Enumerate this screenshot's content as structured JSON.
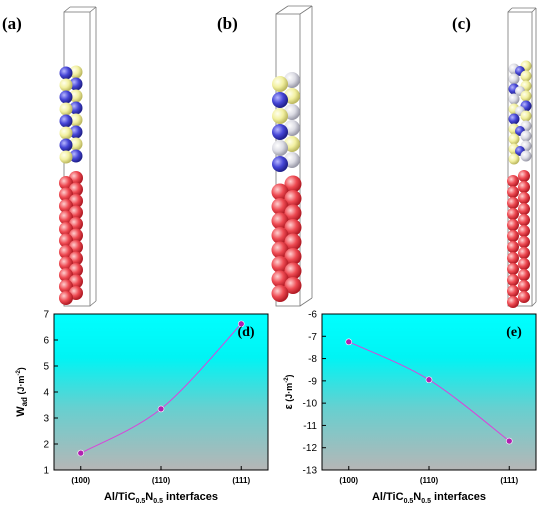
{
  "panels": {
    "a": "(a)",
    "b": "(b)",
    "c": "(c)"
  },
  "colors": {
    "al_atom": "#e8444c",
    "ti_atom": "#4a4ad8",
    "c_atom": "#f4f2a0",
    "n_atom": "#dcdce8",
    "curve": "#d943d9",
    "point": "#b020b0",
    "bg_top": "#00ffff",
    "bg_bottom": "#b8b8b8"
  },
  "chart_data": [
    {
      "type": "line",
      "panel_label": "(d)",
      "categories": [
        "(100)",
        "(110)",
        "(111)"
      ],
      "values": [
        1.65,
        3.35,
        6.62
      ],
      "ylabel": "W_ad (J·m⁻²)",
      "ylabel_main": "W",
      "ylabel_sub": "ad",
      "ylabel_unit": " (J·m",
      "ylabel_exp": "-2",
      "ylabel_close": ")",
      "xlabel_parts": [
        "Al/TiC",
        "0.5",
        "N",
        "0.5",
        " interfaces"
      ],
      "ylim": [
        1,
        7
      ],
      "yticks": [
        1,
        2,
        3,
        4,
        5,
        6,
        7
      ],
      "grid": false
    },
    {
      "type": "line",
      "panel_label": "(e)",
      "categories": [
        "(100)",
        "(110)",
        "(111)"
      ],
      "values": [
        -7.25,
        -8.95,
        -11.7
      ],
      "ylabel": "ε (J·m⁻²)",
      "ylabel_main": "ε",
      "ylabel_sub": "",
      "ylabel_unit": " (J·m",
      "ylabel_exp": "-2",
      "ylabel_close": ")",
      "xlabel_parts": [
        "Al/TiC",
        "0.5",
        "N",
        "0.5",
        " interfaces"
      ],
      "ylim": [
        -13,
        -6
      ],
      "yticks": [
        -6,
        -7,
        -8,
        -9,
        -10,
        -11,
        -12,
        -13
      ],
      "grid": false
    }
  ]
}
